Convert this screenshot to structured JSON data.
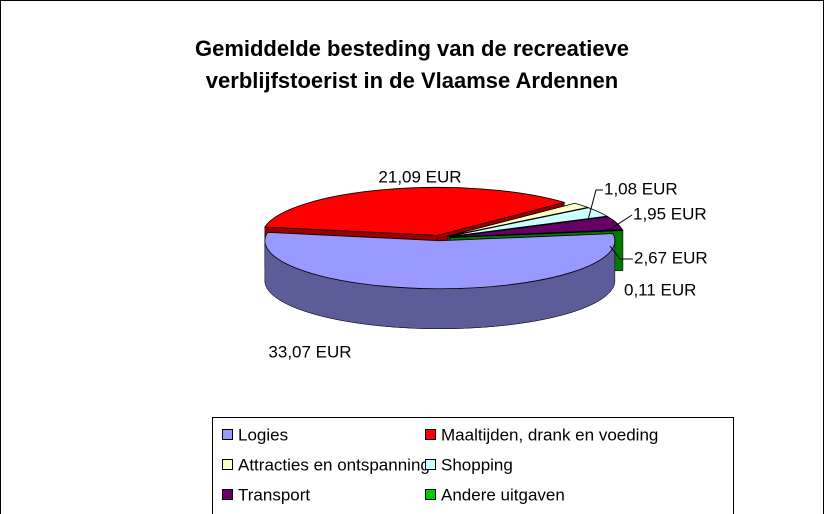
{
  "chart_data": {
    "type": "pie",
    "title": [
      "Gemiddelde besteding van de recreatieve",
      "verblijfstoerist in de Vlaamse Ardennen"
    ],
    "categories": [
      "Logies",
      "Maaltijden, drank en voeding",
      "Attracties en ontspanning",
      "Shopping",
      "Transport",
      "Andere uitgaven"
    ],
    "values": [
      33.07,
      21.09,
      1.08,
      1.95,
      2.67,
      0.11
    ],
    "value_labels": [
      "33,07 EUR",
      "21,09 EUR",
      "1,08 EUR",
      "1,95 EUR",
      "2,67 EUR",
      "0,11 EUR"
    ],
    "colors": [
      "#9999ff",
      "#ff0000",
      "#ffffcc",
      "#ccffff",
      "#660066",
      "#00cc00"
    ],
    "legend": "bottom"
  }
}
